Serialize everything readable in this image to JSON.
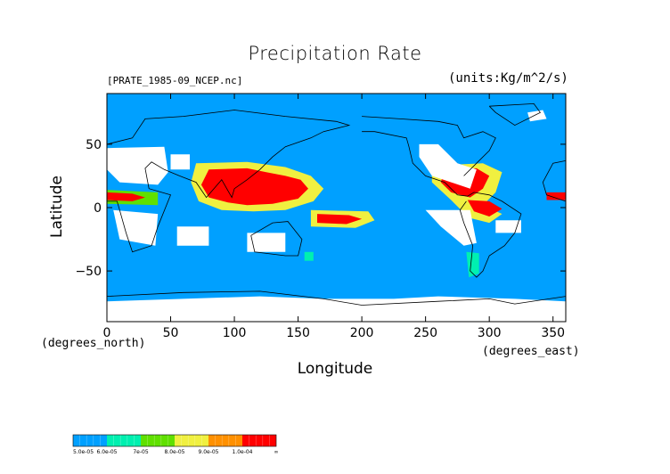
{
  "chart_data": {
    "type": "heatmap",
    "title": "Precipitation Rate",
    "file_label": "[PRATE_1985-09_NCEP.nc]",
    "units_label": "(units:Kg/m^2/s)",
    "xlabel": "Longitude",
    "ylabel": "Latitude",
    "x_unit_label": "(degrees_east)",
    "y_unit_label": "(degrees_north)",
    "xlim": [
      0,
      360
    ],
    "ylim": [
      -90,
      90
    ],
    "x_ticks": [
      0,
      50,
      100,
      150,
      200,
      250,
      300,
      350
    ],
    "y_ticks": [
      50,
      0,
      -50
    ],
    "colorbar": {
      "levels": [
        {
          "label": "5.0e-05",
          "color": "#00a0ff"
        },
        {
          "label": "6.0e-05",
          "color": "#00f0b0"
        },
        {
          "label": "7e-05",
          "color": "#60e000"
        },
        {
          "label": "8.0e-05",
          "color": "#f0f040"
        },
        {
          "label": "9.0e-05",
          "color": "#ff9000"
        },
        {
          "label": "1.0e-04",
          "color": "#ff0000"
        },
        {
          "label": "∞",
          "color": ""
        }
      ]
    },
    "background_color": "#00a0ff",
    "missing_color": "#ffffff",
    "regions": [
      {
        "level": 5,
        "points": [
          [
            80,
            30
          ],
          [
            110,
            31
          ],
          [
            125,
            28
          ],
          [
            140,
            25
          ],
          [
            152,
            22
          ],
          [
            158,
            15
          ],
          [
            150,
            7
          ],
          [
            130,
            3
          ],
          [
            110,
            2
          ],
          [
            95,
            4
          ],
          [
            80,
            8
          ],
          [
            74,
            18
          ]
        ]
      },
      {
        "level": 5,
        "points": [
          [
            165,
            -5
          ],
          [
            190,
            -6
          ],
          [
            200,
            -9
          ],
          [
            188,
            -13
          ],
          [
            165,
            -12
          ]
        ]
      },
      {
        "level": 5,
        "points": [
          [
            265,
            30
          ],
          [
            290,
            31
          ],
          [
            300,
            25
          ],
          [
            295,
            15
          ],
          [
            285,
            8
          ],
          [
            270,
            12
          ],
          [
            262,
            20
          ]
        ]
      },
      {
        "level": 5,
        "points": [
          [
            283,
            6
          ],
          [
            300,
            5
          ],
          [
            310,
            -1
          ],
          [
            300,
            -7
          ],
          [
            288,
            -3
          ]
        ]
      },
      {
        "level": 5,
        "points": [
          [
            0,
            12
          ],
          [
            20,
            11
          ],
          [
            30,
            8
          ],
          [
            20,
            5
          ],
          [
            0,
            6
          ]
        ]
      },
      {
        "level": 5,
        "points": [
          [
            345,
            12
          ],
          [
            360,
            12
          ],
          [
            360,
            6
          ],
          [
            345,
            6
          ]
        ]
      },
      {
        "level": 3,
        "points": [
          [
            70,
            35
          ],
          [
            110,
            36
          ],
          [
            140,
            32
          ],
          [
            160,
            25
          ],
          [
            170,
            15
          ],
          [
            162,
            5
          ],
          [
            140,
            -2
          ],
          [
            115,
            -3
          ],
          [
            90,
            -2
          ],
          [
            72,
            5
          ],
          [
            66,
            20
          ]
        ]
      },
      {
        "level": 3,
        "points": [
          [
            255,
            33
          ],
          [
            295,
            35
          ],
          [
            310,
            28
          ],
          [
            305,
            12
          ],
          [
            295,
            2
          ],
          [
            310,
            -5
          ],
          [
            300,
            -12
          ],
          [
            284,
            -8
          ],
          [
            270,
            6
          ],
          [
            255,
            20
          ]
        ]
      },
      {
        "level": 3,
        "points": [
          [
            160,
            -2
          ],
          [
            205,
            -3
          ],
          [
            210,
            -10
          ],
          [
            195,
            -16
          ],
          [
            160,
            -15
          ]
        ]
      },
      {
        "level": 2,
        "points": [
          [
            0,
            14
          ],
          [
            40,
            12
          ],
          [
            40,
            2
          ],
          [
            0,
            3
          ]
        ]
      },
      {
        "level": 1,
        "points": [
          [
            282,
            -35
          ],
          [
            292,
            -36
          ],
          [
            292,
            -52
          ],
          [
            284,
            -55
          ]
        ]
      },
      {
        "level": 1,
        "points": [
          [
            155,
            -35
          ],
          [
            162,
            -35
          ],
          [
            162,
            -42
          ],
          [
            155,
            -42
          ]
        ]
      }
    ],
    "missing_areas": [
      [
        [
          0,
          47
        ],
        [
          45,
          48
        ],
        [
          48,
          28
        ],
        [
          40,
          18
        ],
        [
          10,
          20
        ],
        [
          0,
          30
        ]
      ],
      [
        [
          50,
          42
        ],
        [
          65,
          42
        ],
        [
          65,
          30
        ],
        [
          50,
          30
        ]
      ],
      [
        [
          5,
          -2
        ],
        [
          40,
          -5
        ],
        [
          38,
          -30
        ],
        [
          10,
          -25
        ]
      ],
      [
        [
          55,
          -15
        ],
        [
          80,
          -15
        ],
        [
          80,
          -30
        ],
        [
          55,
          -30
        ]
      ],
      [
        [
          110,
          -20
        ],
        [
          140,
          -20
        ],
        [
          140,
          -35
        ],
        [
          110,
          -35
        ]
      ],
      [
        [
          245,
          50
        ],
        [
          260,
          50
        ],
        [
          275,
          35
        ],
        [
          290,
          30
        ],
        [
          285,
          15
        ],
        [
          255,
          25
        ],
        [
          245,
          40
        ]
      ],
      [
        [
          250,
          -2
        ],
        [
          285,
          -2
        ],
        [
          290,
          -28
        ],
        [
          280,
          -30
        ],
        [
          262,
          -15
        ]
      ],
      [
        [
          305,
          -10
        ],
        [
          325,
          -10
        ],
        [
          325,
          -20
        ],
        [
          305,
          -20
        ]
      ],
      [
        [
          330,
          75
        ],
        [
          342,
          77
        ],
        [
          345,
          70
        ],
        [
          332,
          68
        ]
      ],
      [
        [
          0,
          -74
        ],
        [
          60,
          -72
        ],
        [
          120,
          -70
        ],
        [
          170,
          -72
        ],
        [
          225,
          -72
        ],
        [
          260,
          -70
        ],
        [
          320,
          -72
        ],
        [
          360,
          -74
        ],
        [
          360,
          -90
        ],
        [
          0,
          -90
        ]
      ]
    ],
    "coastlines": [
      [
        [
          0,
          50
        ],
        [
          20,
          55
        ],
        [
          30,
          70
        ],
        [
          60,
          72
        ],
        [
          100,
          77
        ],
        [
          140,
          72
        ],
        [
          180,
          68
        ],
        [
          190,
          65
        ],
        [
          170,
          60
        ],
        [
          160,
          55
        ],
        [
          140,
          48
        ],
        [
          130,
          40
        ],
        [
          120,
          30
        ],
        [
          110,
          22
        ],
        [
          100,
          15
        ],
        [
          98,
          8
        ],
        [
          90,
          22
        ],
        [
          78,
          8
        ],
        [
          70,
          20
        ],
        [
          57,
          25
        ],
        [
          45,
          30
        ],
        [
          35,
          36
        ],
        [
          30,
          31
        ],
        [
          33,
          15
        ],
        [
          43,
          12
        ],
        [
          50,
          10
        ],
        [
          40,
          -15
        ],
        [
          35,
          -30
        ],
        [
          20,
          -35
        ],
        [
          15,
          -20
        ],
        [
          10,
          -2
        ],
        [
          8,
          5
        ],
        [
          0,
          5
        ]
      ],
      [
        [
          113,
          -22
        ],
        [
          130,
          -12
        ],
        [
          142,
          -11
        ],
        [
          153,
          -25
        ],
        [
          150,
          -38
        ],
        [
          140,
          -38
        ],
        [
          116,
          -35
        ],
        [
          113,
          -22
        ]
      ],
      [
        [
          360,
          5
        ],
        [
          345,
          10
        ],
        [
          342,
          20
        ],
        [
          350,
          35
        ],
        [
          360,
          37
        ]
      ],
      [
        [
          200,
          60
        ],
        [
          210,
          60
        ],
        [
          235,
          55
        ],
        [
          237,
          48
        ],
        [
          240,
          35
        ],
        [
          250,
          25
        ],
        [
          265,
          20
        ],
        [
          275,
          10
        ],
        [
          283,
          9
        ],
        [
          288,
          12
        ],
        [
          300,
          10
        ],
        [
          310,
          5
        ],
        [
          325,
          -5
        ],
        [
          320,
          -20
        ],
        [
          312,
          -30
        ],
        [
          300,
          -38
        ],
        [
          295,
          -50
        ],
        [
          290,
          -55
        ],
        [
          285,
          -50
        ],
        [
          287,
          -30
        ],
        [
          280,
          -12
        ],
        [
          277,
          -2
        ],
        [
          282,
          5
        ]
      ],
      [
        [
          280,
          25
        ],
        [
          290,
          35
        ],
        [
          300,
          45
        ],
        [
          305,
          55
        ],
        [
          295,
          60
        ],
        [
          280,
          55
        ],
        [
          275,
          65
        ],
        [
          260,
          68
        ],
        [
          230,
          70
        ],
        [
          200,
          72
        ]
      ],
      [
        [
          300,
          80
        ],
        [
          335,
          82
        ],
        [
          340,
          75
        ],
        [
          320,
          65
        ],
        [
          305,
          75
        ],
        [
          300,
          80
        ]
      ],
      [
        [
          0,
          -70
        ],
        [
          60,
          -67
        ],
        [
          120,
          -66
        ],
        [
          170,
          -72
        ],
        [
          200,
          -77
        ],
        [
          260,
          -74
        ],
        [
          300,
          -72
        ],
        [
          320,
          -76
        ],
        [
          360,
          -70
        ]
      ]
    ]
  }
}
